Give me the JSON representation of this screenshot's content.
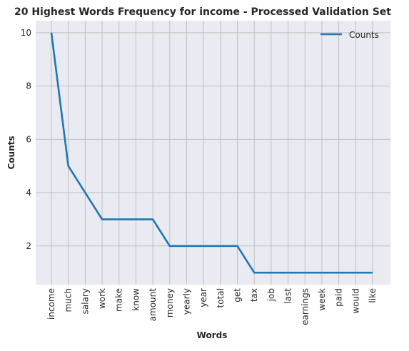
{
  "chart_data": {
    "type": "line",
    "title": "20 Highest Words Frequency for income - Processed Validation Set",
    "xlabel": "Words",
    "ylabel": "Counts",
    "categories": [
      "income",
      "much",
      "salary",
      "work",
      "make",
      "know",
      "amount",
      "money",
      "yearly",
      "year",
      "total",
      "get",
      "tax",
      "job",
      "last",
      "earnings",
      "week",
      "paid",
      "would",
      "like"
    ],
    "series": [
      {
        "name": "Counts",
        "values": [
          10,
          5,
          4,
          3,
          3,
          3,
          3,
          2,
          2,
          2,
          2,
          2,
          1,
          1,
          1,
          1,
          1,
          1,
          1,
          1
        ]
      }
    ],
    "yticks": [
      2,
      4,
      6,
      8,
      10
    ],
    "ylim": [
      0.55,
      10.45
    ],
    "grid": true,
    "legend": "top-right",
    "colors": {
      "line": "#1f77b4",
      "plot_bg": "#eaeaf2",
      "grid": "#c0c0c0"
    }
  }
}
